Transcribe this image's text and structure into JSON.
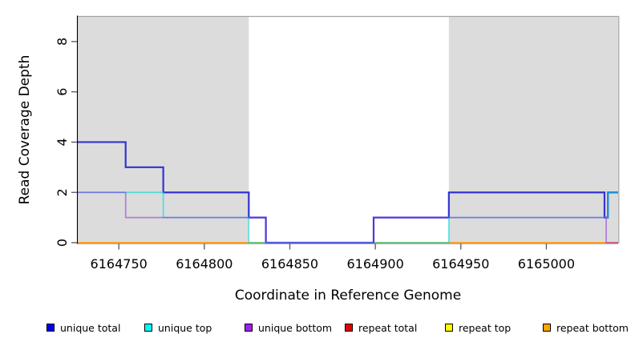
{
  "figure": {
    "background": "#ffffff",
    "plot_border_color": "#a3a3a3",
    "axis_color": "#000000",
    "tick_color": "#555555"
  },
  "chart_data": {
    "type": "line",
    "subtype": "step-after",
    "title": "",
    "xlabel": "Coordinate in Reference Genome",
    "ylabel": "Read Coverage Depth",
    "xlim": [
      6164726,
      6165042
    ],
    "ylim": [
      0,
      9
    ],
    "xticks": [
      6164750,
      6164800,
      6164850,
      6164900,
      6164950,
      6165000
    ],
    "yticks": [
      0,
      2,
      4,
      6,
      8
    ],
    "grid": false,
    "legend_position": "bottom",
    "region_fill": "#dcdcdc",
    "shaded_regions": [
      {
        "start": 6164726,
        "end": 6164826
      },
      {
        "start": 6164943,
        "end": 6165042
      }
    ],
    "series": [
      {
        "name": "unique total",
        "swatch": "#0000f0",
        "color": "#3333d4",
        "steps": [
          [
            6164726,
            4
          ],
          [
            6164754,
            3
          ],
          [
            6164776,
            2
          ],
          [
            6164826,
            1
          ],
          [
            6164836,
            0
          ],
          [
            6164899,
            1
          ],
          [
            6164943,
            2
          ],
          [
            6165034,
            1
          ],
          [
            6165036,
            2
          ],
          [
            6165042,
            2
          ]
        ]
      },
      {
        "name": "unique top",
        "swatch": "#00ffff",
        "color": "#00d8d8",
        "steps": [
          [
            6164726,
            2
          ],
          [
            6164776,
            1
          ],
          [
            6164826,
            0
          ],
          [
            6164943,
            1
          ],
          [
            6165036,
            2
          ],
          [
            6165042,
            2
          ]
        ]
      },
      {
        "name": "unique bottom",
        "swatch": "#a020f0",
        "color": "#8a2be2",
        "steps": [
          [
            6164726,
            2
          ],
          [
            6164754,
            1
          ],
          [
            6164836,
            0
          ],
          [
            6164899,
            1
          ],
          [
            6165035,
            0
          ],
          [
            6165042,
            0
          ]
        ]
      },
      {
        "name": "repeat total",
        "swatch": "#e60000",
        "color": "#e60000",
        "steps": [
          [
            6164726,
            0
          ],
          [
            6165042,
            0
          ]
        ]
      },
      {
        "name": "repeat top",
        "swatch": "#ffff00",
        "color": "#ffff00",
        "steps": [
          [
            6164726,
            0
          ],
          [
            6165042,
            0
          ]
        ]
      },
      {
        "name": "repeat bottom",
        "swatch": "#ffa500",
        "color": "#ff9e1a",
        "steps": [
          [
            6164726,
            0
          ],
          [
            6165042,
            0
          ]
        ]
      }
    ]
  }
}
